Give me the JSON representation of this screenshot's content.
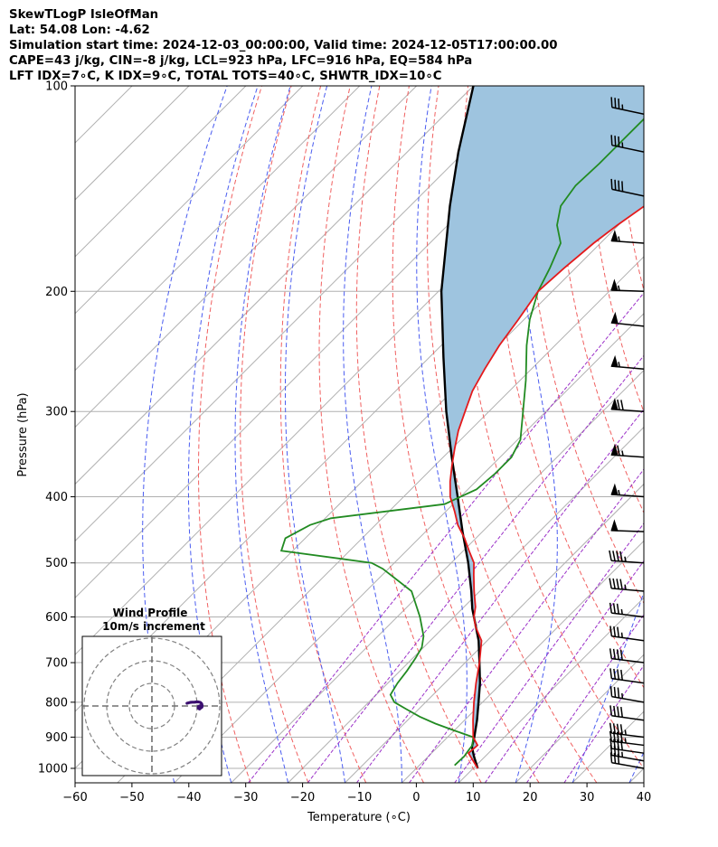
{
  "header": {
    "line1": "SkewTLogP IsleOfMan",
    "line2": "Lat: 54.08   Lon: -4.62",
    "line3": "Simulation start time: 2024-12-03_00:00:00, Valid time: 2024-12-05T17:00:00.00",
    "line4": "CAPE=43 j/kg, CIN=-8 j/kg, LCL=923 hPa, LFC=916 hPa, EQ=584 hPa",
    "line5": "LFT IDX=7∘C, K IDX=9∘C, TOTAL TOTS=40∘C, SHWTR_IDX=10∘C"
  },
  "chart_data": {
    "type": "skewt",
    "xlabel": "Temperature (∘C)",
    "ylabel": "Pressure (hPa)",
    "xlim": [
      -60,
      40
    ],
    "ylim": [
      1050,
      100
    ],
    "x_ticks": [
      "−60",
      "−50",
      "−40",
      "−30",
      "−20",
      "−10",
      "0",
      "10",
      "20",
      "30",
      "40"
    ],
    "x_tick_values": [
      -60,
      -50,
      -40,
      -30,
      -20,
      -10,
      0,
      10,
      20,
      30,
      40
    ],
    "y_ticks": [
      "1000",
      "900",
      "800",
      "700",
      "600",
      "500",
      "400",
      "300",
      "200",
      "100"
    ],
    "y_tick_values": [
      1000,
      900,
      800,
      700,
      600,
      500,
      400,
      300,
      200,
      100
    ],
    "log_scale_y": true,
    "grid": true,
    "series": [
      {
        "key": "temperature",
        "color": "#e41a1c",
        "points": [
          [
            1000,
            10.8
          ],
          [
            950,
            6.5
          ],
          [
            925,
            6.7
          ],
          [
            900,
            4.5
          ],
          [
            850,
            1.5
          ],
          [
            800,
            -1.5
          ],
          [
            750,
            -4.5
          ],
          [
            700,
            -7.5
          ],
          [
            650,
            -11.0
          ],
          [
            620,
            -14.5
          ],
          [
            600,
            -16.5
          ],
          [
            580,
            -18.0
          ],
          [
            550,
            -21.0
          ],
          [
            520,
            -24.0
          ],
          [
            500,
            -26.0
          ],
          [
            480,
            -29.0
          ],
          [
            460,
            -32.0
          ],
          [
            440,
            -35.5
          ],
          [
            420,
            -38.5
          ],
          [
            400,
            -41.8
          ],
          [
            380,
            -44.5
          ],
          [
            360,
            -47.0
          ],
          [
            340,
            -49.5
          ],
          [
            320,
            -52.0
          ],
          [
            300,
            -54.2
          ],
          [
            280,
            -56.5
          ],
          [
            260,
            -58.2
          ],
          [
            240,
            -59.8
          ],
          [
            220,
            -61.0
          ],
          [
            200,
            -62.5
          ],
          [
            185,
            -62.0
          ],
          [
            170,
            -61.2
          ],
          [
            160,
            -60.2
          ],
          [
            150,
            -58.8
          ],
          [
            140,
            -57.2
          ],
          [
            130,
            -55.0
          ],
          [
            120,
            -52.0
          ],
          [
            110,
            -48.5
          ],
          [
            100,
            -45.5
          ]
        ]
      },
      {
        "key": "dewpoint",
        "color": "#228b22",
        "points": [
          [
            990,
            6.2
          ],
          [
            960,
            6.3
          ],
          [
            940,
            6.0
          ],
          [
            925,
            5.8
          ],
          [
            900,
            4.5
          ],
          [
            880,
            0.0
          ],
          [
            860,
            -4.5
          ],
          [
            840,
            -8.5
          ],
          [
            820,
            -12.0
          ],
          [
            800,
            -15.5
          ],
          [
            780,
            -17.5
          ],
          [
            750,
            -18.3
          ],
          [
            720,
            -18.8
          ],
          [
            690,
            -19.5
          ],
          [
            665,
            -20.3
          ],
          [
            640,
            -22.0
          ],
          [
            600,
            -26.0
          ],
          [
            550,
            -32.0
          ],
          [
            510,
            -41.0
          ],
          [
            500,
            -44.0
          ],
          [
            480,
            -62.0
          ],
          [
            460,
            -63.5
          ],
          [
            440,
            -61.5
          ],
          [
            430,
            -59.0
          ],
          [
            410,
            -41.5
          ],
          [
            390,
            -38.5
          ],
          [
            370,
            -38.0
          ],
          [
            350,
            -38.0
          ],
          [
            330,
            -39.5
          ],
          [
            300,
            -44.0
          ],
          [
            270,
            -49.0
          ],
          [
            240,
            -55.0
          ],
          [
            220,
            -59.0
          ],
          [
            200,
            -62.5
          ],
          [
            185,
            -64.5
          ],
          [
            170,
            -67.0
          ],
          [
            160,
            -70.8
          ],
          [
            150,
            -73.5
          ],
          [
            140,
            -74.5
          ],
          [
            130,
            -74.2
          ],
          [
            120,
            -74.2
          ],
          [
            110,
            -74.2
          ],
          [
            100,
            -74.0
          ]
        ]
      },
      {
        "key": "parcel",
        "color": "#000000",
        "points": [
          [
            1000,
            10.8
          ],
          [
            960,
            8.0
          ],
          [
            930,
            6.0
          ],
          [
            900,
            4.7
          ],
          [
            850,
            2.2
          ],
          [
            800,
            -0.7
          ],
          [
            750,
            -3.8
          ],
          [
            700,
            -7.5
          ],
          [
            650,
            -11.5
          ],
          [
            600,
            -16.5
          ],
          [
            584,
            -18.2
          ],
          [
            550,
            -21.5
          ],
          [
            500,
            -27.0
          ],
          [
            450,
            -33.5
          ],
          [
            400,
            -40.5
          ],
          [
            350,
            -48.5
          ],
          [
            300,
            -57.5
          ],
          [
            250,
            -67.5
          ],
          [
            200,
            -79.5
          ],
          [
            150,
            -93.0
          ],
          [
            125,
            -101.0
          ],
          [
            100,
            -110.0
          ]
        ]
      }
    ],
    "shaded_area": {
      "between": [
        "parcel",
        "temperature"
      ],
      "color": "#9ec4df"
    },
    "dry_adiabats_theta_C": [
      -30,
      -20,
      -10,
      0,
      10,
      20,
      30,
      40,
      50,
      60,
      70,
      80,
      90,
      100,
      110,
      120
    ],
    "moist_adiabats_C": [
      -40,
      -30,
      -20,
      -10,
      0,
      10,
      20,
      30,
      40
    ],
    "mixing_ratio_lines_gkg": [
      0.4,
      1,
      2,
      4,
      7,
      10,
      16,
      24
    ],
    "isotherms_C": [
      -170,
      -160,
      -150,
      -140,
      -130,
      -120,
      -110,
      -100,
      -90,
      -80,
      -70,
      -60,
      -50,
      -40,
      -30,
      -20,
      -10,
      0,
      10,
      20,
      30,
      40
    ],
    "wind_barbs": [
      {
        "p": 1000,
        "speed_kt": 30,
        "dir_deg": 260
      },
      {
        "p": 975,
        "speed_kt": 35,
        "dir_deg": 260
      },
      {
        "p": 950,
        "speed_kt": 40,
        "dir_deg": 262
      },
      {
        "p": 925,
        "speed_kt": 45,
        "dir_deg": 263
      },
      {
        "p": 900,
        "speed_kt": 45,
        "dir_deg": 263
      },
      {
        "p": 850,
        "speed_kt": 40,
        "dir_deg": 262
      },
      {
        "p": 800,
        "speed_kt": 35,
        "dir_deg": 260
      },
      {
        "p": 750,
        "speed_kt": 40,
        "dir_deg": 262
      },
      {
        "p": 700,
        "speed_kt": 40,
        "dir_deg": 263
      },
      {
        "p": 650,
        "speed_kt": 35,
        "dir_deg": 262
      },
      {
        "p": 600,
        "speed_kt": 35,
        "dir_deg": 263
      },
      {
        "p": 550,
        "speed_kt": 45,
        "dir_deg": 265
      },
      {
        "p": 500,
        "speed_kt": 45,
        "dir_deg": 266
      },
      {
        "p": 450,
        "speed_kt": 50,
        "dir_deg": 268
      },
      {
        "p": 400,
        "speed_kt": 55,
        "dir_deg": 266
      },
      {
        "p": 350,
        "speed_kt": 65,
        "dir_deg": 266
      },
      {
        "p": 300,
        "speed_kt": 70,
        "dir_deg": 266
      },
      {
        "p": 260,
        "speed_kt": 55,
        "dir_deg": 265
      },
      {
        "p": 225,
        "speed_kt": 50,
        "dir_deg": 264
      },
      {
        "p": 200,
        "speed_kt": 55,
        "dir_deg": 268
      },
      {
        "p": 170,
        "speed_kt": 55,
        "dir_deg": 266
      },
      {
        "p": 145,
        "speed_kt": 40,
        "dir_deg": 258
      },
      {
        "p": 125,
        "speed_kt": 35,
        "dir_deg": 258
      },
      {
        "p": 110,
        "speed_kt": 35,
        "dir_deg": 258
      }
    ],
    "inset": {
      "title_line1": "Wind Profile",
      "title_line2": "10m/s increment",
      "hodograph": [
        [
          -20.5,
          1.2
        ],
        [
          -19.8,
          1.4
        ],
        [
          -19.0,
          1.6
        ],
        [
          -18.2,
          1.7
        ],
        [
          -17.2,
          1.7
        ],
        [
          -16.3,
          1.8
        ],
        [
          -15.5,
          1.8
        ],
        [
          -14.6,
          1.6
        ],
        [
          -14.0,
          1.0
        ],
        [
          -13.8,
          0.2
        ],
        [
          -13.9,
          -0.5
        ],
        [
          -14.6,
          -1.0
        ],
        [
          -15.2,
          -1.2
        ],
        [
          -15.6,
          -0.8
        ],
        [
          -15.4,
          -0.2
        ],
        [
          -14.8,
          0.1
        ],
        [
          -14.2,
          -0.1
        ],
        [
          -14.3,
          -0.7
        ],
        [
          -14.9,
          -1.3
        ],
        [
          -15.3,
          -1.0
        ]
      ],
      "hodograph_color": "#3b0f70"
    }
  }
}
